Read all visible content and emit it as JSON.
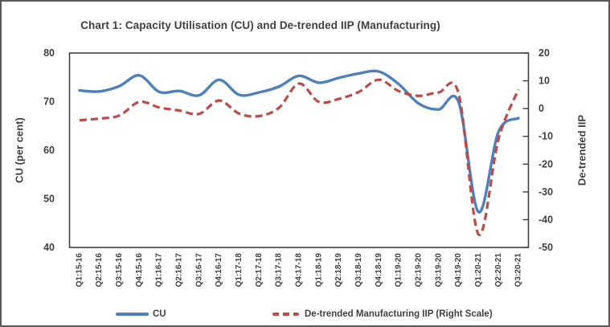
{
  "figure": {
    "background": "#ffffff",
    "border_color": "#595959",
    "text_color": "#404040",
    "axis_color": "#404040"
  },
  "chart_data": {
    "type": "line",
    "title": "Chart 1: Capacity Utilisation (CU) and De-trended IIP (Manufacturing)",
    "grid": false,
    "legend_position": "bottom",
    "categories": [
      "Q1:15-16",
      "Q2:15-16",
      "Q3:15-16",
      "Q4:15-16",
      "Q1:16-17",
      "Q2:16-17",
      "Q3:16-17",
      "Q4:16-17",
      "Q1:17-18",
      "Q2:17-18",
      "Q3:17-18",
      "Q4:17-18",
      "Q1:18-19",
      "Q2:18-19",
      "Q3:18-19",
      "Q4:18-19",
      "Q1:19-20",
      "Q2:19-20",
      "Q3:19-20",
      "Q4:19-20",
      "Q1:20-21",
      "Q2:20-21",
      "Q3:20-21"
    ],
    "left_axis": {
      "label": "CU (per cent)",
      "min": 40,
      "max": 80,
      "ticks": [
        80,
        70,
        60,
        50,
        40
      ]
    },
    "right_axis": {
      "label": "De-trended IIP",
      "min": -50,
      "max": 20,
      "ticks": [
        20,
        10,
        0,
        -10,
        -20,
        -30,
        -40,
        -50
      ]
    },
    "series": [
      {
        "name": "CU",
        "axis": "left",
        "style": "solid",
        "color": "#4E80BC",
        "values": [
          72.3,
          72.1,
          73.2,
          75.4,
          72.0,
          72.2,
          71.3,
          74.5,
          71.4,
          71.9,
          73.1,
          75.3,
          73.9,
          74.9,
          75.8,
          76.2,
          73.6,
          69.6,
          68.4,
          69.9,
          47.3,
          63.8,
          66.6
        ]
      },
      {
        "name": "De-trended Manufacturing IIP (Right Scale)",
        "axis": "right",
        "style": "dashed",
        "color": "#BE4B48",
        "values": [
          -4.2,
          -3.6,
          -2.5,
          2.4,
          0.4,
          -0.7,
          -1.9,
          2.9,
          -1.8,
          -2.7,
          0.3,
          9.0,
          2.4,
          3.5,
          6.0,
          10.4,
          6.3,
          4.6,
          5.8,
          5.4,
          -45.3,
          -11.0,
          6.9
        ]
      }
    ]
  }
}
